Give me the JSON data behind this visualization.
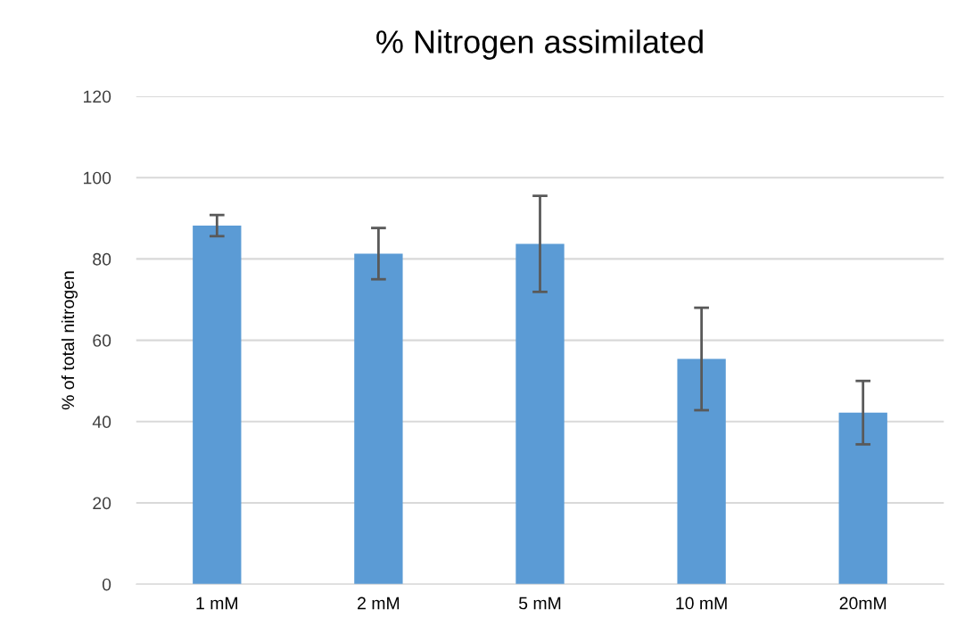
{
  "chart_data": {
    "type": "bar",
    "title": "% Nitrogen assimilated",
    "ylabel": "% of total nitrogen",
    "categories": [
      "1 mM",
      "2 mM",
      "5 mM",
      "10 mM",
      "20mM"
    ],
    "values": [
      88.2,
      81.3,
      83.7,
      55.4,
      42.2
    ],
    "errors": [
      2.6,
      6.3,
      11.8,
      12.6,
      7.8
    ],
    "color": "#5b9bd5",
    "ylim": [
      0,
      120
    ],
    "yticks": [
      0,
      20,
      40,
      60,
      80,
      100,
      120
    ],
    "grid": "y"
  }
}
